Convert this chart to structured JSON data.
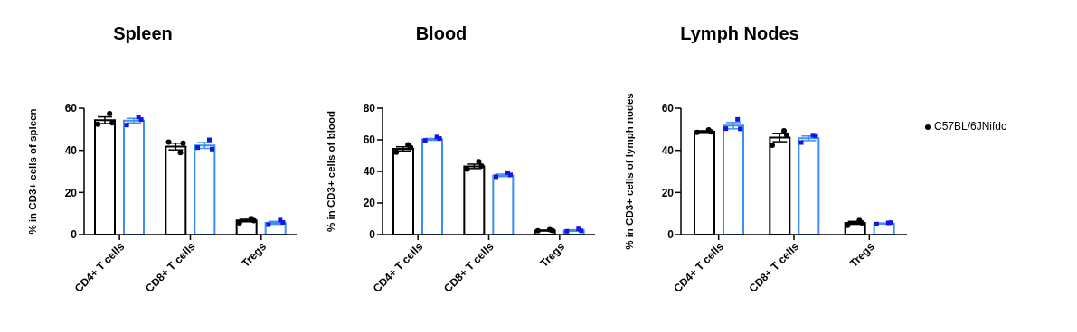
{
  "chart_data": [
    {
      "type": "bar",
      "title": "Spleen",
      "ylabel": "% in CD3+ cells of spleen",
      "categories": [
        "CD4+ T cells",
        "CD8+ T cells",
        "Tregs"
      ],
      "ylim": [
        0,
        60
      ],
      "yticks": [
        0,
        20,
        40,
        60
      ],
      "series": [
        {
          "color": "#000000",
          "values": [
            54.3,
            41.8,
            6.7
          ],
          "errors": [
            1.6,
            1.6,
            0.6
          ]
        },
        {
          "color": "#3d8ff5",
          "values": [
            54.1,
            42.3,
            5.6
          ],
          "errors": [
            1.1,
            1.4,
            0.7
          ]
        },
        {
          "type": "scatter",
          "marker": "circle",
          "color": "#000000",
          "x": [
            "CD4+ T cells",
            "CD4+ T cells",
            "CD4+ T cells",
            "CD8+ T cells",
            "CD8+ T cells",
            "CD8+ T cells",
            "Tregs",
            "Tregs",
            "Tregs"
          ],
          "values": [
            52.4,
            57.4,
            53.0,
            43.9,
            38.9,
            43.4,
            5.6,
            7.6,
            6.6
          ]
        },
        {
          "type": "scatter",
          "marker": "square",
          "color": "#1414e6",
          "x": [
            "CD4+ T cells",
            "CD4+ T cells",
            "CD4+ T cells",
            "CD8+ T cells",
            "CD8+ T cells",
            "CD8+ T cells",
            "Tregs",
            "Tregs",
            "Tregs"
          ],
          "values": [
            52.0,
            55.8,
            54.6,
            41.3,
            45.0,
            40.6,
            4.7,
            6.9,
            5.8
          ]
        }
      ]
    },
    {
      "type": "bar",
      "title": "Blood",
      "ylabel": "% in CD3+ cells of blood",
      "categories": [
        "CD4+ T cells",
        "CD8+ T cells",
        "Tregs"
      ],
      "ylim": [
        0,
        80
      ],
      "yticks": [
        0,
        20,
        40,
        60,
        80
      ],
      "series": [
        {
          "color": "#000000",
          "values": [
            54.3,
            43.2,
            2.6
          ],
          "errors": [
            1.3,
            1.4,
            0.2
          ]
        },
        {
          "color": "#3d8ff5",
          "values": [
            60.3,
            37.5,
            2.6
          ],
          "errors": [
            0.6,
            0.8,
            0.5
          ]
        },
        {
          "type": "scatter",
          "marker": "circle",
          "color": "#000000",
          "x": [
            "CD4+ T cells",
            "CD4+ T cells",
            "CD4+ T cells",
            "CD8+ T cells",
            "CD8+ T cells",
            "CD8+ T cells",
            "Tregs",
            "Tregs",
            "Tregs"
          ],
          "values": [
            52.1,
            56.8,
            55.1,
            41.4,
            46.2,
            43.5,
            2.4,
            3.1,
            2.6
          ]
        },
        {
          "type": "scatter",
          "marker": "square",
          "color": "#1414e6",
          "x": [
            "CD4+ T cells",
            "CD4+ T cells",
            "CD4+ T cells",
            "CD8+ T cells",
            "CD8+ T cells",
            "CD8+ T cells",
            "Tregs",
            "Tregs",
            "Tregs"
          ],
          "values": [
            59.6,
            61.8,
            60.8,
            36.6,
            39.2,
            37.8,
            2.1,
            3.6,
            2.4
          ]
        }
      ]
    },
    {
      "type": "bar",
      "title": "Lymph Nodes",
      "ylabel": "% in CD3+ cells of lymph nodes",
      "categories": [
        "CD4+ T cells",
        "CD8+ T cells",
        "Tregs"
      ],
      "ylim": [
        0,
        60
      ],
      "yticks": [
        0,
        20,
        40,
        60
      ],
      "legend": "right",
      "series": [
        {
          "color": "#000000",
          "values": [
            48.9,
            46.1,
            5.6
          ],
          "errors": [
            0.4,
            2.0,
            0.7
          ]
        },
        {
          "color": "#3d8ff5",
          "values": [
            51.7,
            45.7,
            5.3
          ],
          "errors": [
            1.5,
            1.1,
            0.2
          ]
        },
        {
          "type": "scatter",
          "marker": "circle",
          "name": "C57BL/6JNifdc",
          "color": "#000000",
          "x": [
            "CD4+ T cells",
            "CD4+ T cells",
            "CD4+ T cells",
            "CD8+ T cells",
            "CD8+ T cells",
            "CD8+ T cells",
            "Tregs",
            "Tregs",
            "Tregs"
          ],
          "values": [
            48.5,
            49.7,
            48.7,
            42.4,
            49.3,
            47.3,
            4.4,
            6.8,
            5.6
          ]
        },
        {
          "type": "scatter",
          "marker": "square",
          "color": "#1414e6",
          "x": [
            "CD4+ T cells",
            "CD4+ T cells",
            "CD4+ T cells",
            "CD8+ T cells",
            "CD8+ T cells",
            "CD8+ T cells",
            "Tregs",
            "Tregs",
            "Tregs"
          ],
          "values": [
            50.3,
            54.7,
            50.2,
            43.7,
            47.2,
            47.0,
            5.0,
            5.6,
            5.7
          ]
        }
      ]
    }
  ]
}
